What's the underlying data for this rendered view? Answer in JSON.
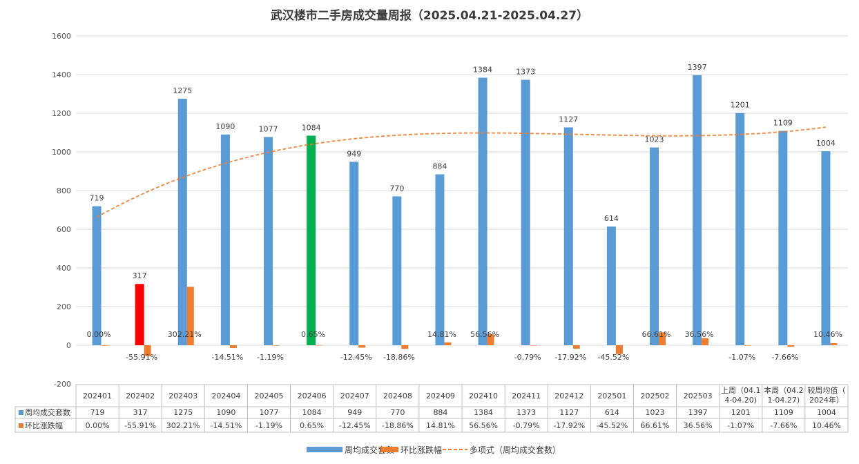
{
  "chart_data": {
    "type": "bar",
    "title": "武汉楼市二手房成交量周报（2025.04.21-2025.04.27）",
    "categories": [
      "202401",
      "202402",
      "202403",
      "202404",
      "202405",
      "202406",
      "202407",
      "202408",
      "202409",
      "202410",
      "202411",
      "202412",
      "202501",
      "202502",
      "202503",
      "上周（04.14-04.20)",
      "本周（04.21-04.27)",
      "较周均值（2024年）"
    ],
    "table_categories": [
      [
        "202401"
      ],
      [
        "202402"
      ],
      [
        "202403"
      ],
      [
        "202404"
      ],
      [
        "202405"
      ],
      [
        "202406"
      ],
      [
        "202407"
      ],
      [
        "202408"
      ],
      [
        "202409"
      ],
      [
        "202410"
      ],
      [
        "202411"
      ],
      [
        "202412"
      ],
      [
        "202501"
      ],
      [
        "202502"
      ],
      [
        "202503"
      ],
      [
        "上周（04.1",
        "4-04.20)"
      ],
      [
        "本周（04.2",
        "1-04.27)"
      ],
      [
        "较周均值（",
        "2024年）"
      ]
    ],
    "ylim": [
      -200,
      1600
    ],
    "yticks": [
      -200,
      0,
      200,
      400,
      600,
      800,
      1000,
      1200,
      1400,
      1600
    ],
    "grid": true,
    "legend_position": "bottom",
    "series": [
      {
        "name": "周均成交套数",
        "type": "bar",
        "color": "#5b9bd5",
        "values": [
          719,
          317,
          1275,
          1090,
          1077,
          1084,
          949,
          770,
          884,
          1384,
          1373,
          1127,
          614,
          1023,
          1397,
          1201,
          1109,
          1004
        ],
        "labels": [
          "719",
          "317",
          "1275",
          "1090",
          "1077",
          "1084",
          "949",
          "770",
          "884",
          "1384",
          "1373",
          "1127",
          "614",
          "1023",
          "1397",
          "1201",
          "1109",
          "1004"
        ],
        "point_colors": [
          "#5b9bd5",
          "#ff0000",
          "#5b9bd5",
          "#5b9bd5",
          "#5b9bd5",
          "#00b050",
          "#5b9bd5",
          "#5b9bd5",
          "#5b9bd5",
          "#5b9bd5",
          "#5b9bd5",
          "#5b9bd5",
          "#5b9bd5",
          "#5b9bd5",
          "#5b9bd5",
          "#5b9bd5",
          "#5b9bd5",
          "#5b9bd5"
        ]
      },
      {
        "name": "环比涨跌幅",
        "type": "bar",
        "color": "#ed7d31",
        "values": [
          0.0,
          -55.91,
          302.21,
          -14.51,
          -1.19,
          0.65,
          -12.45,
          -18.86,
          14.81,
          56.56,
          -0.79,
          -17.92,
          -45.52,
          66.61,
          36.56,
          -1.07,
          -7.66,
          10.46
        ],
        "labels": [
          "0.00%",
          "-55.91%",
          "302.21%",
          "-14.51%",
          "-1.19%",
          "0.65%",
          "-12.45%",
          "-18.86%",
          "14.81%",
          "56.56%",
          "-0.79%",
          "-17.92%",
          "-45.52%",
          "66.61%",
          "36.56%",
          "-1.07%",
          "-7.66%",
          "10.46%"
        ]
      }
    ],
    "trendline": {
      "color": "#ed7d31",
      "style": "dashed",
      "label": "多项式（周均成交套数）"
    }
  }
}
